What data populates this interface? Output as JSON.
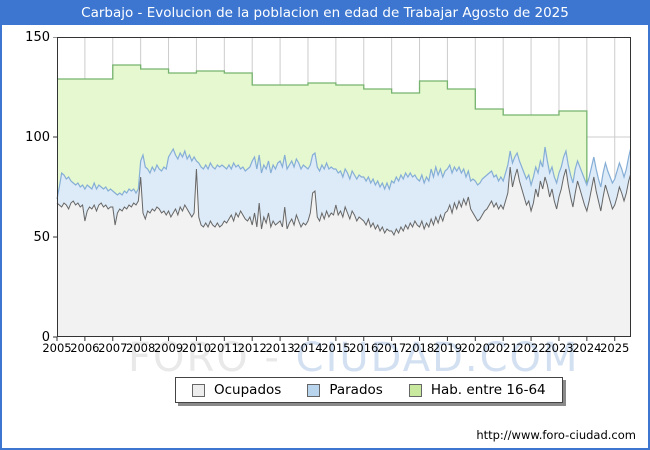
{
  "window": {
    "title": "Carbajo - Evolucion de la poblacion en edad de Trabajar Agosto de 2025",
    "url": "http://www.foro-ciudad.com"
  },
  "watermark": {
    "part1": "FORO -",
    "part2": "CIUDAD.COM"
  },
  "colors": {
    "titlebar": "#3c76d0",
    "frame_border": "#3c76d0",
    "gridline": "#cccccc",
    "plot_border": "#333333"
  },
  "chart_data": {
    "type": "area",
    "title": "Carbajo - Evolucion de la poblacion en edad de Trabajar Agosto de 2025",
    "xlabel": "",
    "ylabel": "",
    "ylim": [
      0,
      150
    ],
    "yticks": [
      0,
      50,
      100,
      150
    ],
    "x_ticks": [
      2005,
      2006,
      2007,
      2008,
      2009,
      2010,
      2011,
      2012,
      2013,
      2014,
      2015,
      2016,
      2017,
      2018,
      2019,
      2020,
      2021,
      2022,
      2023,
      2024,
      2025
    ],
    "x_start": 2005,
    "x_end": 2025.5833,
    "grid": true,
    "legend_position": "bottom",
    "legend": [
      "Ocupados",
      "Parados",
      "Hab. entre 16-64"
    ],
    "series": [
      {
        "name": "Ocupados",
        "type": "stacked-base-monthly",
        "fill": "#f2f2f2",
        "line": "#666666",
        "swatch": "#ededed",
        "monthly_by_year": [
          [
            67,
            66,
            65,
            67,
            66,
            64,
            67,
            68,
            66,
            67,
            65,
            66
          ],
          [
            58,
            63,
            65,
            64,
            66,
            63,
            66,
            67,
            65,
            66,
            64,
            65
          ],
          [
            65,
            56,
            62,
            64,
            63,
            65,
            64,
            66,
            65,
            67,
            66,
            68
          ],
          [
            80,
            62,
            59,
            63,
            62,
            64,
            63,
            65,
            64,
            62,
            63,
            61
          ],
          [
            63,
            60,
            62,
            64,
            61,
            65,
            63,
            66,
            64,
            62,
            60,
            62
          ],
          [
            84,
            60,
            56,
            55,
            57,
            55,
            58,
            56,
            55,
            57,
            55,
            56
          ],
          [
            58,
            57,
            59,
            61,
            58,
            62,
            60,
            63,
            61,
            59,
            58,
            60
          ],
          [
            56,
            62,
            55,
            67,
            54,
            60,
            57,
            62,
            55,
            58,
            56,
            57
          ],
          [
            58,
            55,
            65,
            54,
            57,
            59,
            56,
            61,
            58,
            55,
            57,
            56
          ],
          [
            58,
            62,
            72,
            73,
            60,
            58,
            62,
            59,
            63,
            60,
            62,
            61
          ],
          [
            66,
            61,
            63,
            60,
            65,
            62,
            59,
            63,
            61,
            58,
            60,
            59
          ],
          [
            58,
            56,
            59,
            55,
            57,
            54,
            56,
            53,
            55,
            52,
            54,
            53
          ],
          [
            53,
            51,
            54,
            52,
            55,
            53,
            56,
            54,
            57,
            55,
            58,
            56
          ],
          [
            55,
            58,
            54,
            57,
            55,
            59,
            56,
            60,
            57,
            61,
            58,
            62
          ],
          [
            63,
            66,
            62,
            67,
            64,
            68,
            65,
            69,
            66,
            70,
            64,
            62
          ],
          [
            60,
            58,
            59,
            61,
            63,
            64,
            66,
            68,
            65,
            67,
            64,
            66
          ],
          [
            64,
            68,
            72,
            85,
            75,
            80,
            84,
            78,
            74,
            70,
            66,
            68
          ],
          [
            63,
            67,
            74,
            70,
            78,
            74,
            80,
            76,
            70,
            74,
            68,
            64
          ],
          [
            70,
            74,
            80,
            84,
            76,
            70,
            65,
            72,
            78,
            74,
            70,
            66
          ],
          [
            63,
            68,
            74,
            80,
            73,
            68,
            63,
            70,
            76,
            72,
            68,
            64
          ],
          [
            66,
            70,
            75,
            72,
            68,
            72,
            78,
            82
          ]
        ]
      },
      {
        "name": "Parados",
        "type": "stacked-on-ocupados-monthly",
        "fill": "#ddeaf7",
        "line": "#85aed6",
        "swatch": "#b9d5ee",
        "monthly_by_year": [
          [
            2,
            9,
            17,
            14,
            13,
            16,
            11,
            9,
            10,
            10,
            10,
            10
          ],
          [
            16,
            13,
            10,
            10,
            11,
            11,
            10,
            8,
            9,
            9,
            9,
            9
          ],
          [
            8,
            16,
            9,
            8,
            8,
            8,
            8,
            8,
            8,
            7,
            6,
            6
          ],
          [
            8,
            29,
            26,
            21,
            20,
            21,
            20,
            21,
            20,
            21,
            22,
            23
          ],
          [
            27,
            32,
            32,
            27,
            28,
            27,
            27,
            27,
            25,
            29,
            28,
            28
          ],
          [
            4,
            27,
            29,
            29,
            29,
            29,
            29,
            29,
            29,
            29,
            30,
            30
          ],
          [
            27,
            27,
            27,
            23,
            29,
            23,
            26,
            21,
            24,
            24,
            26,
            25
          ],
          [
            32,
            28,
            29,
            24,
            28,
            26,
            27,
            26,
            27,
            28,
            28,
            30
          ],
          [
            30,
            30,
            26,
            30,
            29,
            29,
            29,
            28,
            29,
            29,
            29,
            29
          ],
          [
            26,
            24,
            19,
            19,
            25,
            25,
            24,
            25,
            24,
            24,
            23,
            23
          ],
          [
            18,
            21,
            20,
            20,
            19,
            20,
            20,
            20,
            20,
            21,
            21,
            21
          ],
          [
            22,
            22,
            21,
            22,
            22,
            22,
            22,
            22,
            22,
            22,
            23,
            21
          ],
          [
            25,
            26,
            26,
            26,
            26,
            26,
            26,
            26,
            25,
            25,
            23,
            23
          ],
          [
            23,
            23,
            23,
            23,
            23,
            25,
            24,
            25,
            24,
            23,
            22,
            21
          ],
          [
            21,
            20,
            20,
            18,
            19,
            17,
            17,
            15,
            14,
            13,
            14,
            17
          ],
          [
            18,
            18,
            18,
            18,
            17,
            17,
            16,
            15,
            15,
            14,
            14,
            14
          ],
          [
            14,
            14,
            14,
            8,
            12,
            10,
            8,
            10,
            11,
            12,
            13,
            13
          ],
          [
            13,
            13,
            11,
            12,
            10,
            11,
            15,
            12,
            12,
            11,
            12,
            13
          ],
          [
            12,
            11,
            10,
            9,
            10,
            11,
            12,
            12,
            10,
            11,
            12,
            13
          ],
          [
            13,
            12,
            11,
            10,
            11,
            11,
            12,
            12,
            11,
            11,
            12,
            13
          ],
          [
            13,
            13,
            12,
            12,
            12,
            12,
            12,
            13
          ]
        ]
      },
      {
        "name": "Hab. entre 16-64",
        "type": "yearly-steps",
        "fill": "#e6f8d0",
        "line": "#76b36e",
        "swatch": "#c8e99e",
        "years": [
          2005,
          2006,
          2007,
          2008,
          2009,
          2010,
          2011,
          2012,
          2013,
          2014,
          2015,
          2016,
          2017,
          2018,
          2019,
          2020,
          2021,
          2022,
          2023
        ],
        "yearly": [
          129,
          129,
          136,
          134,
          132,
          133,
          132,
          126,
          126,
          127,
          126,
          124,
          122,
          128,
          124,
          114,
          111,
          111,
          113
        ],
        "ends_at": 2024
      }
    ]
  }
}
